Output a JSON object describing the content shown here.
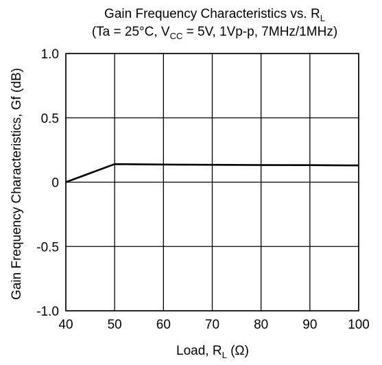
{
  "chart_data": {
    "type": "line",
    "title": "Gain Frequency Characteristics vs. RL",
    "title_main": "Gain Frequency Characteristics vs. R",
    "title_sub": "L",
    "subtitle_parts": {
      "open": "(Ta = 25°C, V",
      "vcc_sub": "CC",
      "rest": " = 5V, 1Vp-p, 7MHz/1MHz)"
    },
    "xlabel_parts": {
      "main": "Load, R",
      "sub": "L",
      "unit": " (Ω)"
    },
    "ylabel": "Gain Frequency Characteristics, Gf (dB)",
    "xlim": [
      40,
      100
    ],
    "ylim": [
      -1.0,
      1.0
    ],
    "x_ticks": [
      40,
      50,
      60,
      70,
      80,
      90,
      100
    ],
    "x_tick_labels": [
      "40",
      "50",
      "60",
      "70",
      "80",
      "90",
      "100"
    ],
    "y_ticks": [
      1.0,
      0.5,
      0,
      -0.5,
      -1.0
    ],
    "y_tick_labels": [
      "1.0",
      "0.5",
      "0",
      "-0.5",
      "-1.0"
    ],
    "grid": true,
    "series": [
      {
        "x": [
          40,
          50,
          60,
          70,
          80,
          90,
          100
        ],
        "y": [
          0.0,
          0.14,
          0.137,
          0.135,
          0.133,
          0.132,
          0.13
        ],
        "color": "#000000"
      }
    ]
  }
}
